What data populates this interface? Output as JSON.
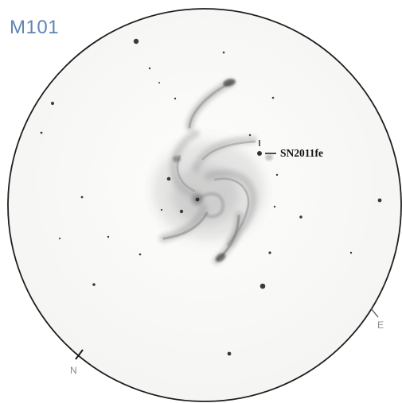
{
  "title": "M101",
  "supernova_label": "SN2011fe",
  "orientation": {
    "north": "N",
    "east": "E"
  },
  "colors": {
    "title": "#5f86b3",
    "field_border": "#1e1e1e",
    "paper": "#fbfbfa",
    "graphite": "#6b6b6b"
  }
}
